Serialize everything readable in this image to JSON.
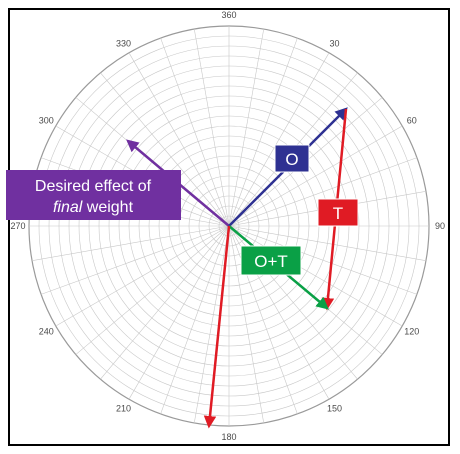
{
  "angle_labels": [
    "360",
    "30",
    "60",
    "90",
    "120",
    "150",
    "180",
    "210",
    "240",
    "270",
    "300",
    "330"
  ],
  "annotation": {
    "line1": "Desired effect of",
    "line2_italic": "final",
    "line2_rest": " weight"
  },
  "vectors": {
    "o_label": "O",
    "t_label": "T",
    "ot_label": "O+T"
  },
  "colors": {
    "o": "#2e3192",
    "t": "#e01b24",
    "ot": "#0aa046",
    "desired": "#7030a0",
    "grid": "#c8c8c8",
    "frame": "#000000"
  }
}
